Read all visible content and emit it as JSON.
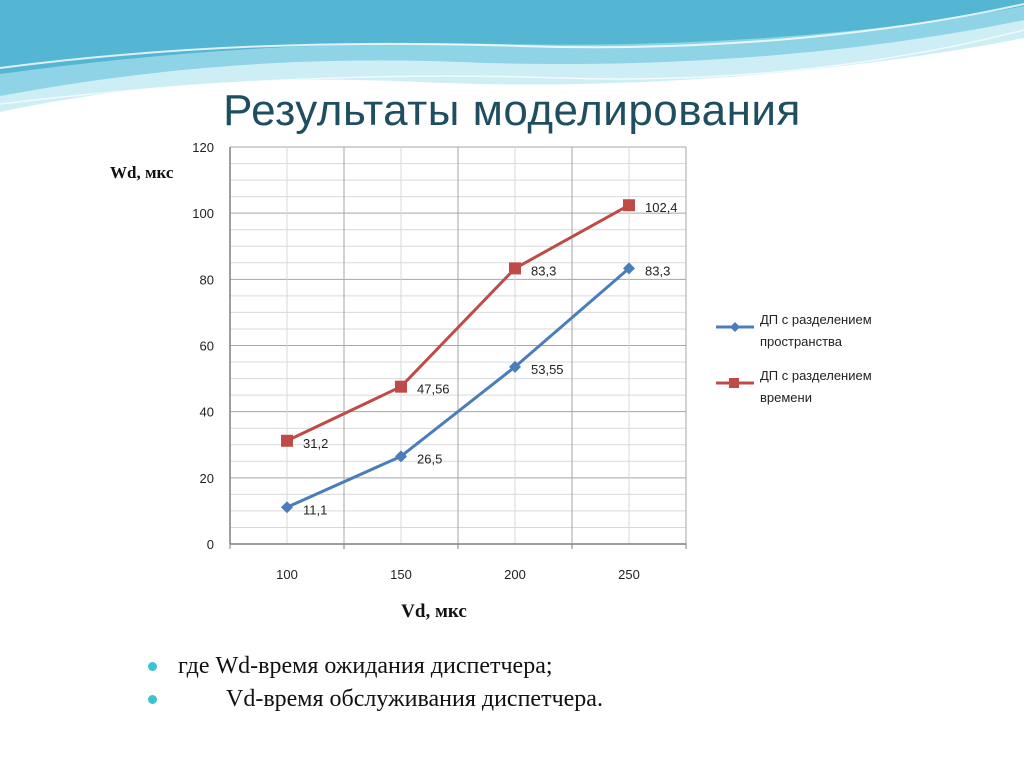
{
  "slide": {
    "title": "Результаты моделирования",
    "bullets": [
      "где Wd-время ожидания диспетчера;",
      "Vd-время обслуживания диспетчера."
    ]
  },
  "colors": {
    "title": "#1f4e60",
    "bullet": "#3bc3d2",
    "wave_light": "#cdeef5",
    "wave_mid": "#8fd3e6",
    "wave_dark": "#54b6d2",
    "series_space": "#4a7ebb",
    "series_time": "#be4b48",
    "grid": "#bfbfbf"
  },
  "chart_data": {
    "type": "line",
    "title": "",
    "xlabel": "Vd, мкс",
    "ylabel": "Wd, мкс",
    "categories": [
      "100",
      "150",
      "200",
      "250"
    ],
    "ylim": [
      0,
      120
    ],
    "yticks": [
      "0",
      "20",
      "40",
      "60",
      "80",
      "100",
      "120"
    ],
    "grid": true,
    "legend_position": "right",
    "series": [
      {
        "name": "ДП с разделением пространства",
        "legend_lines": [
          "ДП с разделением",
          "пространства"
        ],
        "marker": "diamond",
        "color": "#4a7ebb",
        "values": [
          11.1,
          26.5,
          53.55,
          83.3
        ],
        "labels": [
          "11,1",
          "26,5",
          "53,55",
          "83,3"
        ]
      },
      {
        "name": "ДП с разделением времени",
        "legend_lines": [
          "ДП с разделением",
          "времени"
        ],
        "marker": "square",
        "color": "#be4b48",
        "values": [
          31.2,
          47.56,
          83.3,
          102.4
        ],
        "labels": [
          "31,2",
          "47,56",
          "83,3",
          "102,4"
        ]
      }
    ]
  }
}
